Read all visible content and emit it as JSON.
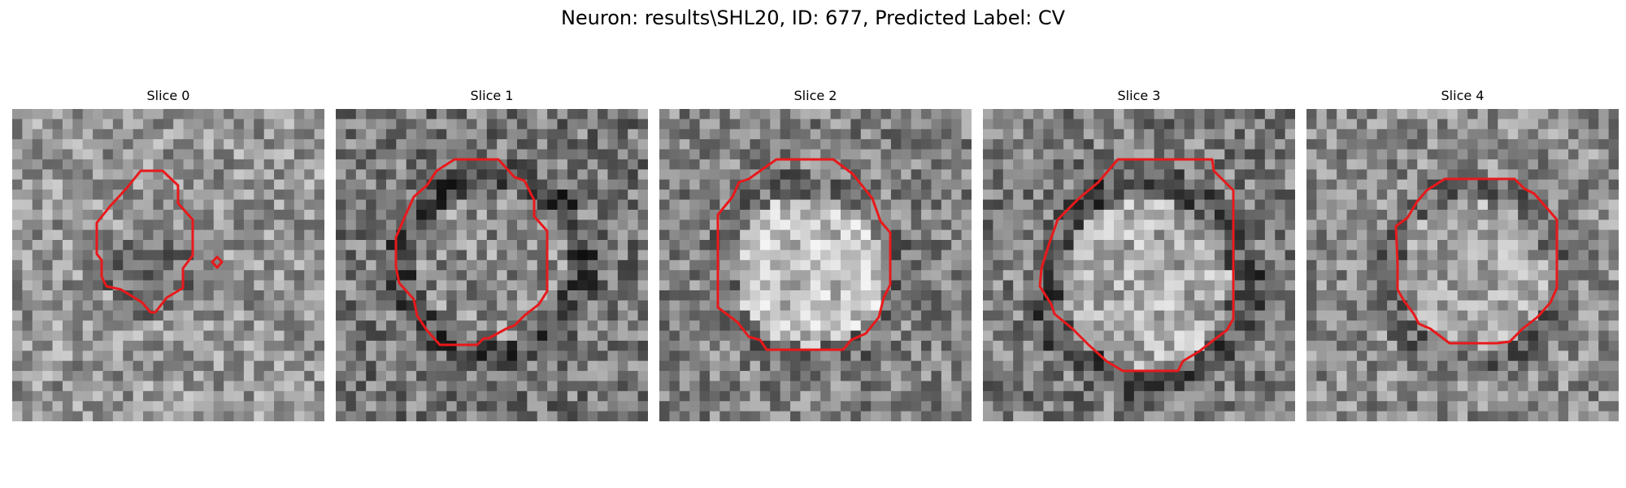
{
  "figure": {
    "title": "Neuron: results\\SHL20, ID: 677, Predicted Label: CV"
  },
  "panels": [
    {
      "title": "Slice 0"
    },
    {
      "title": "Slice 1"
    },
    {
      "title": "Slice 2"
    },
    {
      "title": "Slice 3"
    },
    {
      "title": "Slice 4"
    }
  ],
  "colors": {
    "contour": "#e8191b",
    "background": "#ffffff"
  },
  "image_style": "grayscale 31x31 microscopy patch with red ROI contour"
}
